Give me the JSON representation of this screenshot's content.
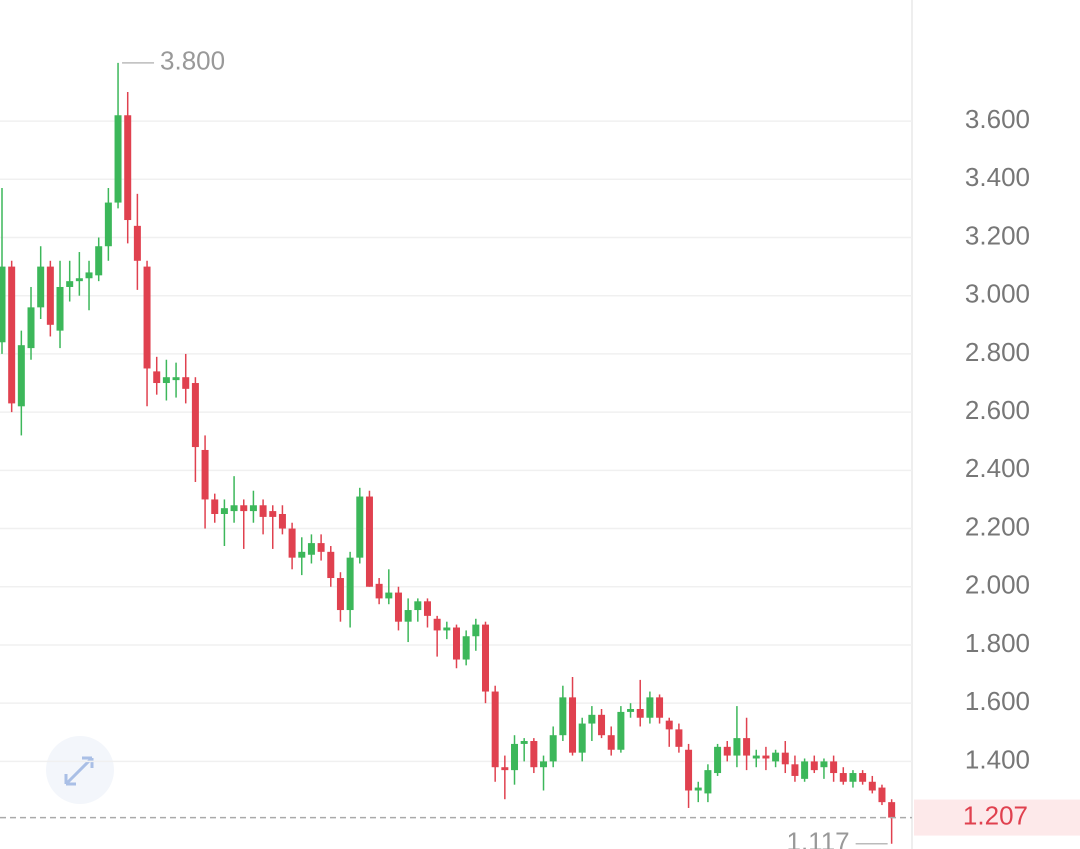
{
  "chart_data": {
    "type": "candlestick",
    "up_color": "#3cb75a",
    "down_color": "#e0414f",
    "ylim": [
      1.099,
      4.016
    ],
    "yticks": [
      {
        "value": 1.4,
        "label": "1.400"
      },
      {
        "value": 1.6,
        "label": "1.600"
      },
      {
        "value": 1.8,
        "label": "1.800"
      },
      {
        "value": 2.0,
        "label": "2.000"
      },
      {
        "value": 2.2,
        "label": "2.200"
      },
      {
        "value": 2.4,
        "label": "2.400"
      },
      {
        "value": 2.6,
        "label": "2.600"
      },
      {
        "value": 2.8,
        "label": "2.800"
      },
      {
        "value": 3.0,
        "label": "3.000"
      },
      {
        "value": 3.2,
        "label": "3.200"
      },
      {
        "value": 3.4,
        "label": "3.400"
      },
      {
        "value": 3.6,
        "label": "3.600"
      }
    ],
    "grid": true,
    "max_label": {
      "value": 3.8,
      "label": "3.800"
    },
    "min_label": {
      "value": 1.117,
      "label": "1.117"
    },
    "last_price": {
      "value": 1.207,
      "label": "1.207"
    },
    "open": [
      2.84,
      3.1,
      2.62,
      2.82,
      2.96,
      3.1,
      2.88,
      3.03,
      3.05,
      3.06,
      3.07,
      3.17,
      3.32,
      3.62,
      3.24,
      3.1,
      2.74,
      2.7,
      2.71,
      2.72,
      2.7,
      2.47,
      2.3,
      2.25,
      2.26,
      2.28,
      2.26,
      2.28,
      2.26,
      2.25,
      2.2,
      2.1,
      2.11,
      2.15,
      2.12,
      2.03,
      1.92,
      2.1,
      2.31,
      2.01,
      1.96,
      1.98,
      1.88,
      1.92,
      1.95,
      1.89,
      1.85,
      1.86,
      1.75,
      1.83,
      1.87,
      1.64,
      1.38,
      1.37,
      1.46,
      1.47,
      1.38,
      1.4,
      1.49,
      1.62,
      1.43,
      1.53,
      1.56,
      1.49,
      1.44,
      1.57,
      1.58,
      1.55,
      1.62,
      1.54,
      1.51,
      1.44,
      1.3,
      1.29,
      1.36,
      1.45,
      1.42,
      1.48,
      1.41,
      1.42,
      1.4,
      1.43,
      1.39,
      1.34,
      1.4,
      1.38,
      1.4,
      1.36,
      1.33,
      1.36,
      1.33,
      1.31,
      1.26
    ],
    "high": [
      3.37,
      3.12,
      2.88,
      3.03,
      3.17,
      3.12,
      3.12,
      3.12,
      3.15,
      3.12,
      3.2,
      3.37,
      3.8,
      3.7,
      3.35,
      3.12,
      2.79,
      2.78,
      2.77,
      2.8,
      2.72,
      2.52,
      2.32,
      2.3,
      2.38,
      2.3,
      2.33,
      2.3,
      2.28,
      2.28,
      2.22,
      2.17,
      2.18,
      2.18,
      2.14,
      2.05,
      2.12,
      2.34,
      2.33,
      2.03,
      2.06,
      2.0,
      1.96,
      1.96,
      1.96,
      1.9,
      1.88,
      1.87,
      1.85,
      1.89,
      1.88,
      1.66,
      1.42,
      1.49,
      1.48,
      1.48,
      1.42,
      1.52,
      1.66,
      1.69,
      1.55,
      1.59,
      1.58,
      1.52,
      1.59,
      1.6,
      1.68,
      1.64,
      1.63,
      1.55,
      1.53,
      1.46,
      1.33,
      1.39,
      1.46,
      1.47,
      1.59,
      1.55,
      1.44,
      1.45,
      1.44,
      1.47,
      1.42,
      1.41,
      1.42,
      1.41,
      1.42,
      1.38,
      1.37,
      1.37,
      1.35,
      1.32,
      1.27
    ],
    "low": [
      2.8,
      2.6,
      2.52,
      2.78,
      2.92,
      2.86,
      2.82,
      2.98,
      3.0,
      2.95,
      3.05,
      3.12,
      3.3,
      3.18,
      3.02,
      2.62,
      2.66,
      2.64,
      2.65,
      2.63,
      2.36,
      2.2,
      2.22,
      2.14,
      2.22,
      2.13,
      2.22,
      2.18,
      2.13,
      2.18,
      2.06,
      2.04,
      2.08,
      2.09,
      2.0,
      1.88,
      1.86,
      2.08,
      2.0,
      1.94,
      1.94,
      1.85,
      1.81,
      1.88,
      1.86,
      1.76,
      1.82,
      1.72,
      1.73,
      1.78,
      1.6,
      1.33,
      1.27,
      1.32,
      1.4,
      1.36,
      1.3,
      1.38,
      1.47,
      1.42,
      1.4,
      1.47,
      1.48,
      1.42,
      1.43,
      1.55,
      1.52,
      1.53,
      1.53,
      1.45,
      1.43,
      1.24,
      1.26,
      1.26,
      1.35,
      1.4,
      1.38,
      1.37,
      1.38,
      1.37,
      1.38,
      1.36,
      1.33,
      1.33,
      1.36,
      1.34,
      1.33,
      1.32,
      1.31,
      1.32,
      1.29,
      1.25,
      1.117
    ],
    "close": [
      3.1,
      2.63,
      2.83,
      2.96,
      3.1,
      2.9,
      3.03,
      3.05,
      3.06,
      3.08,
      3.17,
      3.32,
      3.62,
      3.26,
      3.12,
      2.75,
      2.7,
      2.72,
      2.72,
      2.68,
      2.48,
      2.3,
      2.25,
      2.27,
      2.28,
      2.26,
      2.28,
      2.24,
      2.24,
      2.2,
      2.1,
      2.12,
      2.15,
      2.12,
      2.03,
      1.92,
      2.1,
      2.31,
      2.0,
      1.96,
      1.98,
      1.88,
      1.92,
      1.95,
      1.9,
      1.85,
      1.86,
      1.75,
      1.83,
      1.87,
      1.64,
      1.38,
      1.37,
      1.46,
      1.47,
      1.38,
      1.4,
      1.49,
      1.62,
      1.43,
      1.53,
      1.56,
      1.49,
      1.44,
      1.57,
      1.58,
      1.55,
      1.62,
      1.55,
      1.51,
      1.45,
      1.3,
      1.31,
      1.37,
      1.45,
      1.42,
      1.48,
      1.42,
      1.42,
      1.41,
      1.43,
      1.39,
      1.35,
      1.4,
      1.37,
      1.4,
      1.36,
      1.33,
      1.36,
      1.33,
      1.3,
      1.26,
      1.207
    ]
  }
}
